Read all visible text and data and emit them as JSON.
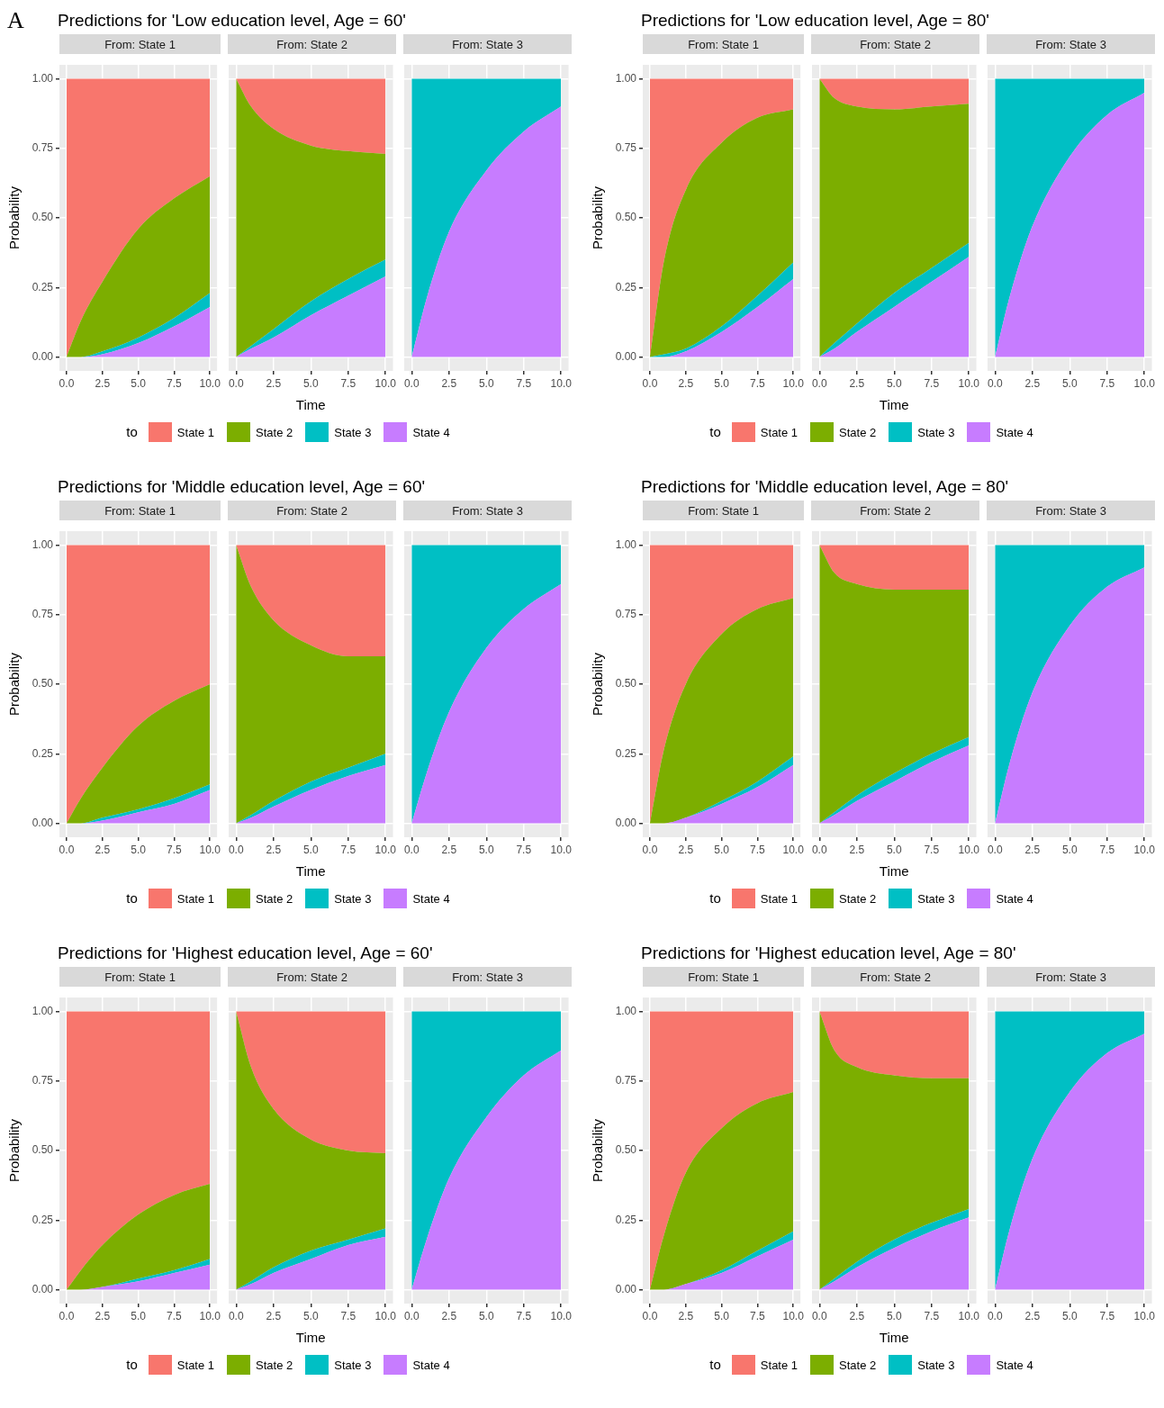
{
  "chart_data": [
    {
      "type": "area",
      "title": "Predictions for 'Low education level, Age = 60'",
      "subtitle": "From: State 1",
      "ylabel": "Probability",
      "annotations": [
        "A"
      ],
      "legend": "bottom",
      "legend_title": "to",
      "stacked": true,
      "grid": true,
      "x": [
        0,
        1,
        2.5,
        5,
        7.5,
        10
      ],
      "xlim": [
        -0.5,
        10.5
      ],
      "ylim": [
        -0.05,
        1.05
      ],
      "xticks": [
        {
          "value": 0,
          "label": "0.0"
        },
        {
          "value": 2.5,
          "label": "2.5"
        },
        {
          "value": 5,
          "label": "5.0"
        },
        {
          "value": 7.5,
          "label": "7.5"
        },
        {
          "value": 10,
          "label": "10.0"
        }
      ],
      "yticks": [
        {
          "value": 0,
          "label": "0.00"
        },
        {
          "value": 0.25,
          "label": "0.25"
        },
        {
          "value": 0.5,
          "label": "0.50"
        },
        {
          "value": 0.75,
          "label": "0.75"
        },
        {
          "value": 1,
          "label": "1.00"
        }
      ],
      "series": [
        {
          "name": "State 4",
          "color": "#c77cff",
          "values": [
            0,
            0,
            0.01,
            0.05,
            0.11,
            0.18
          ]
        },
        {
          "name": "State 3",
          "color": "#00bfc4",
          "values": [
            0,
            0,
            0.01,
            0.02,
            0.03,
            0.05
          ]
        },
        {
          "name": "State 2",
          "color": "#7cae00",
          "values": [
            0,
            0.13,
            0.25,
            0.39,
            0.43,
            0.42
          ]
        },
        {
          "name": "State 1",
          "color": "#f8766d",
          "values": [
            1,
            0.87,
            0.73,
            0.54,
            0.43,
            0.35
          ]
        }
      ]
    },
    {
      "type": "area",
      "subtitle": "From: State 2",
      "xlabel": "Time",
      "tick_labels": "x",
      "stacked": true,
      "grid": true,
      "x": [
        0,
        1,
        2.5,
        5,
        7.5,
        10
      ],
      "xlim": [
        -0.5,
        10.5
      ],
      "ylim": [
        -0.05,
        1.05
      ],
      "xticks": [
        {
          "value": 0,
          "label": "0.0"
        },
        {
          "value": 2.5,
          "label": "2.5"
        },
        {
          "value": 5,
          "label": "5.0"
        },
        {
          "value": 7.5,
          "label": "7.5"
        },
        {
          "value": 10,
          "label": "10.0"
        }
      ],
      "yticks": [
        0,
        0.25,
        0.5,
        0.75,
        1
      ],
      "series": [
        {
          "color": "#c77cff",
          "values": [
            0,
            0.03,
            0.07,
            0.15,
            0.22,
            0.29
          ]
        },
        {
          "color": "#00bfc4",
          "values": [
            0,
            0.01,
            0.03,
            0.05,
            0.06,
            0.06
          ]
        },
        {
          "color": "#7cae00",
          "values": [
            1,
            0.86,
            0.72,
            0.56,
            0.46,
            0.38
          ]
        },
        {
          "color": "#f8766d",
          "values": [
            0,
            0.1,
            0.18,
            0.24,
            0.26,
            0.27
          ]
        }
      ]
    },
    {
      "type": "area",
      "subtitle": "From: State 3",
      "tick_labels": "x",
      "stacked": true,
      "grid": true,
      "x": [
        0,
        1,
        2.5,
        5,
        7.5,
        10
      ],
      "xlim": [
        -0.5,
        10.5
      ],
      "ylim": [
        -0.05,
        1.05
      ],
      "xticks": [
        {
          "value": 0,
          "label": "0.0"
        },
        {
          "value": 2.5,
          "label": "2.5"
        },
        {
          "value": 5,
          "label": "5.0"
        },
        {
          "value": 7.5,
          "label": "7.5"
        },
        {
          "value": 10,
          "label": "10.0"
        }
      ],
      "yticks": [
        0,
        0.25,
        0.5,
        0.75,
        1
      ],
      "series": [
        {
          "color": "#c77cff",
          "values": [
            0,
            0.21,
            0.45,
            0.67,
            0.81,
            0.9
          ]
        },
        {
          "color": "#00bfc4",
          "values": [
            1,
            0.79,
            0.55,
            0.33,
            0.19,
            0.1
          ]
        }
      ]
    },
    {
      "type": "area",
      "title": "Predictions for 'Low education level, Age = 80'",
      "subtitle": "From: State 1",
      "ylabel": "Probability",
      "legend": "bottom",
      "legend_title": "to",
      "stacked": true,
      "grid": true,
      "x": [
        0,
        1,
        2.5,
        5,
        7.5,
        10
      ],
      "xlim": [
        -0.5,
        10.5
      ],
      "ylim": [
        -0.05,
        1.05
      ],
      "xticks": [
        {
          "value": 0,
          "label": "0.0"
        },
        {
          "value": 2.5,
          "label": "2.5"
        },
        {
          "value": 5,
          "label": "5.0"
        },
        {
          "value": 7.5,
          "label": "7.5"
        },
        {
          "value": 10,
          "label": "10.0"
        }
      ],
      "yticks": [
        {
          "value": 0,
          "label": "0.00"
        },
        {
          "value": 0.25,
          "label": "0.25"
        },
        {
          "value": 0.5,
          "label": "0.50"
        },
        {
          "value": 0.75,
          "label": "0.75"
        },
        {
          "value": 1,
          "label": "1.00"
        }
      ],
      "series": [
        {
          "name": "State 4",
          "color": "#c77cff",
          "values": [
            0,
            0,
            0.02,
            0.09,
            0.18,
            0.28
          ]
        },
        {
          "name": "State 3",
          "color": "#00bfc4",
          "values": [
            0,
            0.01,
            0.01,
            0.02,
            0.04,
            0.06
          ]
        },
        {
          "name": "State 2",
          "color": "#7cae00",
          "values": [
            0,
            0.34,
            0.57,
            0.66,
            0.64,
            0.55
          ]
        },
        {
          "name": "State 1",
          "color": "#f8766d",
          "values": [
            1,
            0.65,
            0.4,
            0.23,
            0.14,
            0.11
          ]
        }
      ]
    },
    {
      "type": "area",
      "subtitle": "From: State 2",
      "xlabel": "Time",
      "tick_labels": "x",
      "stacked": true,
      "grid": true,
      "x": [
        0,
        1,
        2.5,
        5,
        7.5,
        10
      ],
      "xlim": [
        -0.5,
        10.5
      ],
      "ylim": [
        -0.05,
        1.05
      ],
      "xticks": [
        {
          "value": 0,
          "label": "0.0"
        },
        {
          "value": 2.5,
          "label": "2.5"
        },
        {
          "value": 5,
          "label": "5.0"
        },
        {
          "value": 7.5,
          "label": "7.5"
        },
        {
          "value": 10,
          "label": "10.0"
        }
      ],
      "yticks": [
        0,
        0.25,
        0.5,
        0.75,
        1
      ],
      "series": [
        {
          "color": "#c77cff",
          "values": [
            0,
            0.03,
            0.09,
            0.18,
            0.27,
            0.36
          ]
        },
        {
          "color": "#00bfc4",
          "values": [
            0,
            0.02,
            0.03,
            0.05,
            0.05,
            0.05
          ]
        },
        {
          "color": "#7cae00",
          "values": [
            1,
            0.88,
            0.78,
            0.66,
            0.58,
            0.5
          ]
        },
        {
          "color": "#f8766d",
          "values": [
            0,
            0.07,
            0.1,
            0.11,
            0.1,
            0.09
          ]
        }
      ]
    },
    {
      "type": "area",
      "subtitle": "From: State 3",
      "tick_labels": "x",
      "stacked": true,
      "grid": true,
      "x": [
        0,
        1,
        2.5,
        5,
        7.5,
        10
      ],
      "xlim": [
        -0.5,
        10.5
      ],
      "ylim": [
        -0.05,
        1.05
      ],
      "xticks": [
        {
          "value": 0,
          "label": "0.0"
        },
        {
          "value": 2.5,
          "label": "2.5"
        },
        {
          "value": 5,
          "label": "5.0"
        },
        {
          "value": 7.5,
          "label": "7.5"
        },
        {
          "value": 10,
          "label": "10.0"
        }
      ],
      "yticks": [
        0,
        0.25,
        0.5,
        0.75,
        1
      ],
      "series": [
        {
          "color": "#c77cff",
          "values": [
            0,
            0.22,
            0.47,
            0.72,
            0.87,
            0.95
          ]
        },
        {
          "color": "#00bfc4",
          "values": [
            1,
            0.78,
            0.53,
            0.28,
            0.13,
            0.05
          ]
        }
      ]
    },
    {
      "type": "area",
      "title": "Predictions for 'Middle education level, Age = 60'",
      "subtitle": "From: State 1",
      "ylabel": "Probability",
      "legend": "bottom",
      "legend_title": "to",
      "stacked": true,
      "grid": true,
      "x": [
        0,
        1,
        2.5,
        5,
        7.5,
        10
      ],
      "xlim": [
        -0.5,
        10.5
      ],
      "ylim": [
        -0.05,
        1.05
      ],
      "xticks": [
        {
          "value": 0,
          "label": "0.0"
        },
        {
          "value": 2.5,
          "label": "2.5"
        },
        {
          "value": 5,
          "label": "5.0"
        },
        {
          "value": 7.5,
          "label": "7.5"
        },
        {
          "value": 10,
          "label": "10.0"
        }
      ],
      "yticks": [
        {
          "value": 0,
          "label": "0.00"
        },
        {
          "value": 0.25,
          "label": "0.25"
        },
        {
          "value": 0.5,
          "label": "0.50"
        },
        {
          "value": 0.75,
          "label": "0.75"
        },
        {
          "value": 1,
          "label": "1.00"
        }
      ],
      "series": [
        {
          "name": "State 4",
          "color": "#c77cff",
          "values": [
            0,
            0,
            0.01,
            0.04,
            0.07,
            0.12
          ]
        },
        {
          "name": "State 3",
          "color": "#00bfc4",
          "values": [
            0,
            0,
            0.01,
            0.01,
            0.02,
            0.02
          ]
        },
        {
          "name": "State 2",
          "color": "#7cae00",
          "values": [
            0,
            0.09,
            0.18,
            0.3,
            0.35,
            0.36
          ]
        },
        {
          "name": "State 1",
          "color": "#f8766d",
          "values": [
            1,
            0.91,
            0.8,
            0.65,
            0.56,
            0.5
          ]
        }
      ]
    },
    {
      "type": "area",
      "subtitle": "From: State 2",
      "xlabel": "Time",
      "tick_labels": "x",
      "stacked": true,
      "grid": true,
      "x": [
        0,
        1,
        2.5,
        5,
        7.5,
        10
      ],
      "xlim": [
        -0.5,
        10.5
      ],
      "ylim": [
        -0.05,
        1.05
      ],
      "xticks": [
        {
          "value": 0,
          "label": "0.0"
        },
        {
          "value": 2.5,
          "label": "2.5"
        },
        {
          "value": 5,
          "label": "5.0"
        },
        {
          "value": 7.5,
          "label": "7.5"
        },
        {
          "value": 10,
          "label": "10.0"
        }
      ],
      "yticks": [
        0,
        0.25,
        0.5,
        0.75,
        1
      ],
      "series": [
        {
          "color": "#c77cff",
          "values": [
            0,
            0.02,
            0.06,
            0.12,
            0.17,
            0.21
          ]
        },
        {
          "color": "#00bfc4",
          "values": [
            0,
            0.01,
            0.02,
            0.03,
            0.03,
            0.04
          ]
        },
        {
          "color": "#7cae00",
          "values": [
            1,
            0.82,
            0.65,
            0.49,
            0.4,
            0.35
          ]
        },
        {
          "color": "#f8766d",
          "values": [
            0,
            0.15,
            0.27,
            0.36,
            0.4,
            0.4
          ]
        }
      ]
    },
    {
      "type": "area",
      "subtitle": "From: State 3",
      "tick_labels": "x",
      "stacked": true,
      "grid": true,
      "x": [
        0,
        1,
        2.5,
        5,
        7.5,
        10
      ],
      "xlim": [
        -0.5,
        10.5
      ],
      "ylim": [
        -0.05,
        1.05
      ],
      "xticks": [
        {
          "value": 0,
          "label": "0.0"
        },
        {
          "value": 2.5,
          "label": "2.5"
        },
        {
          "value": 5,
          "label": "5.0"
        },
        {
          "value": 7.5,
          "label": "7.5"
        },
        {
          "value": 10,
          "label": "10.0"
        }
      ],
      "yticks": [
        0,
        0.25,
        0.5,
        0.75,
        1
      ],
      "series": [
        {
          "color": "#c77cff",
          "values": [
            0,
            0.18,
            0.4,
            0.63,
            0.77,
            0.86
          ]
        },
        {
          "color": "#00bfc4",
          "values": [
            1,
            0.82,
            0.6,
            0.37,
            0.23,
            0.14
          ]
        }
      ]
    },
    {
      "type": "area",
      "title": "Predictions for 'Middle education level, Age = 80'",
      "subtitle": "From: State 1",
      "ylabel": "Probability",
      "legend": "bottom",
      "legend_title": "to",
      "stacked": true,
      "grid": true,
      "x": [
        0,
        1,
        2.5,
        5,
        7.5,
        10
      ],
      "xlim": [
        -0.5,
        10.5
      ],
      "ylim": [
        -0.05,
        1.05
      ],
      "xticks": [
        {
          "value": 0,
          "label": "0.0"
        },
        {
          "value": 2.5,
          "label": "2.5"
        },
        {
          "value": 5,
          "label": "5.0"
        },
        {
          "value": 7.5,
          "label": "7.5"
        },
        {
          "value": 10,
          "label": "10.0"
        }
      ],
      "yticks": [
        {
          "value": 0,
          "label": "0.00"
        },
        {
          "value": 0.25,
          "label": "0.25"
        },
        {
          "value": 0.5,
          "label": "0.50"
        },
        {
          "value": 0.75,
          "label": "0.75"
        },
        {
          "value": 1,
          "label": "1.00"
        }
      ],
      "series": [
        {
          "name": "State 4",
          "color": "#c77cff",
          "values": [
            0,
            0,
            0.02,
            0.07,
            0.13,
            0.21
          ]
        },
        {
          "name": "State 3",
          "color": "#00bfc4",
          "values": [
            0,
            0,
            0,
            0.01,
            0.02,
            0.03
          ]
        },
        {
          "name": "State 2",
          "color": "#7cae00",
          "values": [
            0,
            0.27,
            0.48,
            0.6,
            0.62,
            0.57
          ]
        },
        {
          "name": "State 1",
          "color": "#f8766d",
          "values": [
            1,
            0.73,
            0.5,
            0.32,
            0.23,
            0.19
          ]
        }
      ]
    },
    {
      "type": "area",
      "subtitle": "From: State 2",
      "xlabel": "Time",
      "tick_labels": "x",
      "stacked": true,
      "grid": true,
      "x": [
        0,
        1,
        2.5,
        5,
        7.5,
        10
      ],
      "xlim": [
        -0.5,
        10.5
      ],
      "ylim": [
        -0.05,
        1.05
      ],
      "xticks": [
        {
          "value": 0,
          "label": "0.0"
        },
        {
          "value": 2.5,
          "label": "2.5"
        },
        {
          "value": 5,
          "label": "5.0"
        },
        {
          "value": 7.5,
          "label": "7.5"
        },
        {
          "value": 10,
          "label": "10.0"
        }
      ],
      "yticks": [
        0,
        0.25,
        0.5,
        0.75,
        1
      ],
      "series": [
        {
          "color": "#c77cff",
          "values": [
            0,
            0.03,
            0.08,
            0.15,
            0.22,
            0.28
          ]
        },
        {
          "color": "#00bfc4",
          "values": [
            0,
            0.01,
            0.02,
            0.03,
            0.03,
            0.03
          ]
        },
        {
          "color": "#7cae00",
          "values": [
            1,
            0.86,
            0.76,
            0.66,
            0.59,
            0.53
          ]
        },
        {
          "color": "#f8766d",
          "values": [
            0,
            0.1,
            0.14,
            0.16,
            0.16,
            0.16
          ]
        }
      ]
    },
    {
      "type": "area",
      "subtitle": "From: State 3",
      "tick_labels": "x",
      "stacked": true,
      "grid": true,
      "x": [
        0,
        1,
        2.5,
        5,
        7.5,
        10
      ],
      "xlim": [
        -0.5,
        10.5
      ],
      "ylim": [
        -0.05,
        1.05
      ],
      "xticks": [
        {
          "value": 0,
          "label": "0.0"
        },
        {
          "value": 2.5,
          "label": "2.5"
        },
        {
          "value": 5,
          "label": "5.0"
        },
        {
          "value": 7.5,
          "label": "7.5"
        },
        {
          "value": 10,
          "label": "10.0"
        }
      ],
      "yticks": [
        0,
        0.25,
        0.5,
        0.75,
        1
      ],
      "series": [
        {
          "color": "#c77cff",
          "values": [
            0,
            0.22,
            0.47,
            0.71,
            0.85,
            0.92
          ]
        },
        {
          "color": "#00bfc4",
          "values": [
            1,
            0.78,
            0.53,
            0.29,
            0.15,
            0.08
          ]
        }
      ]
    },
    {
      "type": "area",
      "title": "Predictions for 'Highest education level, Age = 60'",
      "subtitle": "From: State 1",
      "ylabel": "Probability",
      "legend": "bottom",
      "legend_title": "to",
      "stacked": true,
      "grid": true,
      "x": [
        0,
        1,
        2.5,
        5,
        7.5,
        10
      ],
      "xlim": [
        -0.5,
        10.5
      ],
      "ylim": [
        -0.05,
        1.05
      ],
      "xticks": [
        {
          "value": 0,
          "label": "0.0"
        },
        {
          "value": 2.5,
          "label": "2.5"
        },
        {
          "value": 5,
          "label": "5.0"
        },
        {
          "value": 7.5,
          "label": "7.5"
        },
        {
          "value": 10,
          "label": "10.0"
        }
      ],
      "yticks": [
        {
          "value": 0,
          "label": "0.00"
        },
        {
          "value": 0.25,
          "label": "0.25"
        },
        {
          "value": 0.5,
          "label": "0.50"
        },
        {
          "value": 0.75,
          "label": "0.75"
        },
        {
          "value": 1,
          "label": "1.00"
        }
      ],
      "series": [
        {
          "name": "State 4",
          "color": "#c77cff",
          "values": [
            0,
            0,
            0.01,
            0.03,
            0.06,
            0.09
          ]
        },
        {
          "name": "State 3",
          "color": "#00bfc4",
          "values": [
            0,
            0,
            0,
            0.01,
            0.01,
            0.02
          ]
        },
        {
          "name": "State 2",
          "color": "#7cae00",
          "values": [
            0,
            0.07,
            0.15,
            0.23,
            0.27,
            0.27
          ]
        },
        {
          "name": "State 1",
          "color": "#f8766d",
          "values": [
            1,
            0.93,
            0.84,
            0.73,
            0.66,
            0.62
          ]
        }
      ]
    },
    {
      "type": "area",
      "subtitle": "From: State 2",
      "xlabel": "Time",
      "tick_labels": "x",
      "stacked": true,
      "grid": true,
      "x": [
        0,
        1,
        2.5,
        5,
        7.5,
        10
      ],
      "xlim": [
        -0.5,
        10.5
      ],
      "ylim": [
        -0.05,
        1.05
      ],
      "xticks": [
        {
          "value": 0,
          "label": "0.0"
        },
        {
          "value": 2.5,
          "label": "2.5"
        },
        {
          "value": 5,
          "label": "5.0"
        },
        {
          "value": 7.5,
          "label": "7.5"
        },
        {
          "value": 10,
          "label": "10.0"
        }
      ],
      "yticks": [
        0,
        0.25,
        0.5,
        0.75,
        1
      ],
      "series": [
        {
          "color": "#c77cff",
          "values": [
            0,
            0.02,
            0.06,
            0.11,
            0.16,
            0.19
          ]
        },
        {
          "color": "#00bfc4",
          "values": [
            0,
            0.01,
            0.02,
            0.03,
            0.02,
            0.03
          ]
        },
        {
          "color": "#7cae00",
          "values": [
            1,
            0.77,
            0.57,
            0.4,
            0.32,
            0.27
          ]
        },
        {
          "color": "#f8766d",
          "values": [
            0,
            0.2,
            0.35,
            0.46,
            0.5,
            0.51
          ]
        }
      ]
    },
    {
      "type": "area",
      "subtitle": "From: State 3",
      "tick_labels": "x",
      "stacked": true,
      "grid": true,
      "x": [
        0,
        1,
        2.5,
        5,
        7.5,
        10
      ],
      "xlim": [
        -0.5,
        10.5
      ],
      "ylim": [
        -0.05,
        1.05
      ],
      "xticks": [
        {
          "value": 0,
          "label": "0.0"
        },
        {
          "value": 2.5,
          "label": "2.5"
        },
        {
          "value": 5,
          "label": "5.0"
        },
        {
          "value": 7.5,
          "label": "7.5"
        },
        {
          "value": 10,
          "label": "10.0"
        }
      ],
      "yticks": [
        0,
        0.25,
        0.5,
        0.75,
        1
      ],
      "series": [
        {
          "color": "#c77cff",
          "values": [
            0,
            0.18,
            0.4,
            0.62,
            0.77,
            0.86
          ]
        },
        {
          "color": "#00bfc4",
          "values": [
            1,
            0.82,
            0.6,
            0.38,
            0.23,
            0.14
          ]
        }
      ]
    },
    {
      "type": "area",
      "title": "Predictions for 'Highest education level, Age = 80'",
      "subtitle": "From: State 1",
      "ylabel": "Probability",
      "legend": "bottom",
      "legend_title": "to",
      "stacked": true,
      "grid": true,
      "x": [
        0,
        1,
        2.5,
        5,
        7.5,
        10
      ],
      "xlim": [
        -0.5,
        10.5
      ],
      "ylim": [
        -0.05,
        1.05
      ],
      "xticks": [
        {
          "value": 0,
          "label": "0.0"
        },
        {
          "value": 2.5,
          "label": "2.5"
        },
        {
          "value": 5,
          "label": "5.0"
        },
        {
          "value": 7.5,
          "label": "7.5"
        },
        {
          "value": 10,
          "label": "10.0"
        }
      ],
      "yticks": [
        {
          "value": 0,
          "label": "0.00"
        },
        {
          "value": 0.25,
          "label": "0.25"
        },
        {
          "value": 0.5,
          "label": "0.50"
        },
        {
          "value": 0.75,
          "label": "0.75"
        },
        {
          "value": 1,
          "label": "1.00"
        }
      ],
      "series": [
        {
          "name": "State 4",
          "color": "#c77cff",
          "values": [
            0,
            0,
            0.02,
            0.06,
            0.12,
            0.18
          ]
        },
        {
          "name": "State 3",
          "color": "#00bfc4",
          "values": [
            0,
            0,
            0,
            0.01,
            0.02,
            0.03
          ]
        },
        {
          "name": "State 2",
          "color": "#7cae00",
          "values": [
            0,
            0.2,
            0.4,
            0.51,
            0.53,
            0.5
          ]
        },
        {
          "name": "State 1",
          "color": "#f8766d",
          "values": [
            1,
            0.8,
            0.58,
            0.42,
            0.33,
            0.29
          ]
        }
      ]
    },
    {
      "type": "area",
      "subtitle": "From: State 2",
      "xlabel": "Time",
      "tick_labels": "x",
      "stacked": true,
      "grid": true,
      "x": [
        0,
        1,
        2.5,
        5,
        7.5,
        10
      ],
      "xlim": [
        -0.5,
        10.5
      ],
      "ylim": [
        -0.05,
        1.05
      ],
      "xticks": [
        {
          "value": 0,
          "label": "0.0"
        },
        {
          "value": 2.5,
          "label": "2.5"
        },
        {
          "value": 5,
          "label": "5.0"
        },
        {
          "value": 7.5,
          "label": "7.5"
        },
        {
          "value": 10,
          "label": "10.0"
        }
      ],
      "yticks": [
        0,
        0.25,
        0.5,
        0.75,
        1
      ],
      "series": [
        {
          "color": "#c77cff",
          "values": [
            0,
            0.03,
            0.08,
            0.15,
            0.21,
            0.26
          ]
        },
        {
          "color": "#00bfc4",
          "values": [
            0,
            0.01,
            0.02,
            0.03,
            0.03,
            0.03
          ]
        },
        {
          "color": "#7cae00",
          "values": [
            1,
            0.82,
            0.7,
            0.59,
            0.52,
            0.47
          ]
        },
        {
          "color": "#f8766d",
          "values": [
            0,
            0.14,
            0.2,
            0.23,
            0.24,
            0.24
          ]
        }
      ]
    },
    {
      "type": "area",
      "subtitle": "From: State 3",
      "tick_labels": "x",
      "stacked": true,
      "grid": true,
      "x": [
        0,
        1,
        2.5,
        5,
        7.5,
        10
      ],
      "xlim": [
        -0.5,
        10.5
      ],
      "ylim": [
        -0.05,
        1.05
      ],
      "xticks": [
        {
          "value": 0,
          "label": "0.0"
        },
        {
          "value": 2.5,
          "label": "2.5"
        },
        {
          "value": 5,
          "label": "5.0"
        },
        {
          "value": 7.5,
          "label": "7.5"
        },
        {
          "value": 10,
          "label": "10.0"
        }
      ],
      "yticks": [
        0,
        0.25,
        0.5,
        0.75,
        1
      ],
      "series": [
        {
          "color": "#c77cff",
          "values": [
            0,
            0.22,
            0.47,
            0.71,
            0.85,
            0.92
          ]
        },
        {
          "color": "#00bfc4",
          "values": [
            1,
            0.78,
            0.53,
            0.29,
            0.15,
            0.08
          ]
        }
      ]
    }
  ]
}
